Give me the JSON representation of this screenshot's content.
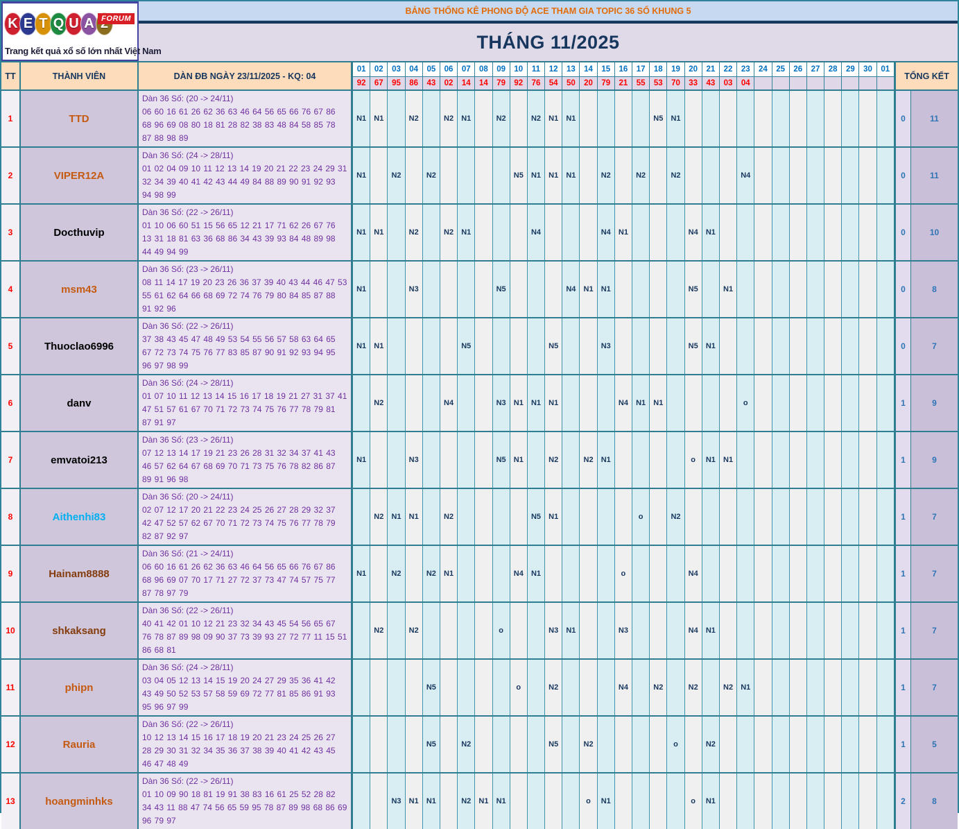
{
  "logo": {
    "letters": [
      {
        "ch": "K",
        "color": "#cf2030"
      },
      {
        "ch": "E",
        "color": "#2b3990"
      },
      {
        "ch": "T",
        "color": "#d8920a"
      },
      {
        "ch": "Q",
        "color": "#1d8a41"
      },
      {
        "ch": "U",
        "color": "#cf2030"
      },
      {
        "ch": "A",
        "color": "#8a52a0"
      },
      {
        "ch": "2",
        "color": "#8a6d1e"
      }
    ],
    "forum_badge": "FORUM",
    "tagline": "Trang kết quả xổ số lớn nhất Việt Nam"
  },
  "banner": {
    "title": "BẢNG THỐNG KÊ PHONG ĐỘ ACE THAM GIA TOPIC 36 SỐ KHUNG 5"
  },
  "month_title": "THÁNG 11/2025",
  "table": {
    "headers": {
      "tt": "TT",
      "member": "THÀNH VIÊN",
      "dan": "DÀN ĐB NGÀY 23/11/2025 - KQ: 04",
      "total": "TỔNG KẾT"
    },
    "days": [
      "01",
      "02",
      "03",
      "04",
      "05",
      "06",
      "07",
      "08",
      "09",
      "10",
      "11",
      "12",
      "13",
      "14",
      "15",
      "16",
      "17",
      "18",
      "19",
      "20",
      "21",
      "22",
      "23",
      "24",
      "25",
      "26",
      "27",
      "28",
      "29",
      "30",
      "01"
    ],
    "results": [
      "92",
      "67",
      "95",
      "86",
      "43",
      "02",
      "14",
      "14",
      "79",
      "92",
      "76",
      "54",
      "50",
      "20",
      "79",
      "21",
      "55",
      "53",
      "70",
      "33",
      "43",
      "03",
      "04",
      "",
      "",
      "",
      "",
      "",
      "",
      "",
      ""
    ],
    "rows": [
      {
        "tt": "1",
        "name": "TTD",
        "name_color": "#c55a11",
        "dan_title": "Dàn 36 Số: (20 -> 24/11)",
        "dan_numbers": "06 60 16 61 26 62 36 63 46 64 56 65 66 76 67 86 68 96 69 08 80 18 81 28 82 38 83 48 84 58 85 78 87 88 98 89",
        "marks": {
          "1": "N1",
          "2": "N1",
          "4": "N2",
          "6": "N2",
          "7": "N1",
          "9": "N2",
          "11": "N2",
          "12": "N1",
          "13": "N1",
          "18": "N5",
          "19": "N1"
        },
        "miss": "0",
        "total": "11"
      },
      {
        "tt": "2",
        "name": "VIPER12A",
        "name_color": "#c55a11",
        "dan_title": "Dàn 36 Số: (24 -> 28/11)",
        "dan_numbers": "01 02 04 09 10 11 12 13 14 19 20 21 22 23 24 29 31 32 34 39 40 41 42 43 44 49 84 88 89 90 91 92 93 94 98 99",
        "marks": {
          "1": "N1",
          "3": "N2",
          "5": "N2",
          "10": "N5",
          "11": "N1",
          "12": "N1",
          "13": "N1",
          "15": "N2",
          "17": "N2",
          "19": "N2",
          "23": "N4"
        },
        "miss": "0",
        "total": "11"
      },
      {
        "tt": "3",
        "name": "Docthuvip",
        "name_color": "#000000",
        "dan_title": "Dàn 36 Số: (22 -> 26/11)",
        "dan_numbers": "01 10 06 60 51 15 56 65 12 21 17 71 62 26 67 76 13 31 18 81 63 36 68 86 34 43 39 93 84 48 89 98 44 49 94 99",
        "marks": {
          "1": "N1",
          "2": "N1",
          "4": "N2",
          "6": "N2",
          "7": "N1",
          "11": "N4",
          "15": "N4",
          "16": "N1",
          "20": "N4",
          "21": "N1"
        },
        "miss": "0",
        "total": "10"
      },
      {
        "tt": "4",
        "name": "msm43",
        "name_color": "#c55a11",
        "dan_title": "Dàn 36 Số: (23 -> 26/11)",
        "dan_numbers": "08 11 14 17 19 20 23 26 36 37 39 40 43 44 46 47 53 55 61 62 64 66 68 69 72 74 76 79 80 84 85 87 88 91 92 96",
        "marks": {
          "1": "N1",
          "4": "N3",
          "9": "N5",
          "13": "N4",
          "14": "N1",
          "15": "N1",
          "20": "N5",
          "22": "N1"
        },
        "miss": "0",
        "total": "8"
      },
      {
        "tt": "5",
        "name": "Thuoclao6996",
        "name_color": "#000000",
        "dan_title": "Dàn 36 Số: (22 -> 26/11)",
        "dan_numbers": "37 38 43 45 47 48 49 53 54 55 56 57 58 63 64 65 67 72 73 74 75 76 77 83 85 87 90 91 92 93 94 95 96 97 98 99",
        "marks": {
          "1": "N1",
          "2": "N1",
          "7": "N5",
          "12": "N5",
          "15": "N3",
          "20": "N5",
          "21": "N1"
        },
        "miss": "0",
        "total": "7"
      },
      {
        "tt": "6",
        "name": "danv",
        "name_color": "#000000",
        "dan_title": "Dàn 36 Số: (24 -> 28/11)",
        "dan_numbers": "01 07 10 11 12 13 14 15 16 17 18 19 21 27 31 37 41 47 51 57 61 67 70 71 72 73 74 75 76 77 78 79 81 87 91 97",
        "marks": {
          "2": "N2",
          "6": "N4",
          "9": "N3",
          "10": "N1",
          "11": "N1",
          "12": "N1",
          "16": "N4",
          "17": "N1",
          "18": "N1",
          "23": "o"
        },
        "miss": "1",
        "total": "9"
      },
      {
        "tt": "7",
        "name": "emvatoi213",
        "name_color": "#000000",
        "dan_title": "Dàn 36 Số: (23 -> 26/11)",
        "dan_numbers": "07 12 13 14 17 19 21 23 26 28 31 32 34 37 41 43 46 57 62 64 67 68 69 70 71 73 75 76 78 82 86 87 89 91 96 98",
        "marks": {
          "1": "N1",
          "4": "N3",
          "9": "N5",
          "10": "N1",
          "12": "N2",
          "14": "N2",
          "15": "N1",
          "20": "o",
          "21": "N1",
          "22": "N1"
        },
        "miss": "1",
        "total": "9"
      },
      {
        "tt": "8",
        "name": "Aithenhi83",
        "name_color": "#00b0f0",
        "dan_title": "Dàn 36 Số: (20 -> 24/11)",
        "dan_numbers": "02 07 12 17 20 21 22 23 24 25 26 27 28 29 32 37 42 47 52 57 62 67 70 71 72 73 74 75 76 77 78 79 82 87 92 97",
        "marks": {
          "2": "N2",
          "3": "N1",
          "4": "N1",
          "6": "N2",
          "11": "N5",
          "12": "N1",
          "17": "o",
          "19": "N2"
        },
        "miss": "1",
        "total": "7"
      },
      {
        "tt": "9",
        "name": "Hainam8888",
        "name_color": "#843c0c",
        "dan_title": "Dàn 36 Số: (21 -> 24/11)",
        "dan_numbers": "06 60 16 61 26 62 36 63 46 64 56 65 66 76 67 86 68 96 69 07 70 17 71 27 72 37 73 47 74 57 75 77 87 78 97 79",
        "marks": {
          "1": "N1",
          "3": "N2",
          "5": "N2",
          "6": "N1",
          "10": "N4",
          "11": "N1",
          "16": "o",
          "20": "N4"
        },
        "miss": "1",
        "total": "7"
      },
      {
        "tt": "10",
        "name": "shkaksang",
        "name_color": "#843c0c",
        "dan_title": "Dàn 36 Số: (22 -> 26/11)",
        "dan_numbers": "40 41 42 01 10 12 21 23 32 34 43 45 54 56 65 67 76 78 87 89 98 09 90 37 73 39 93 27 72 77 11 15 51 86 68 81",
        "marks": {
          "2": "N2",
          "4": "N2",
          "9": "o",
          "12": "N3",
          "13": "N1",
          "16": "N3",
          "20": "N4",
          "21": "N1"
        },
        "miss": "1",
        "total": "7"
      },
      {
        "tt": "11",
        "name": "phipn",
        "name_color": "#c55a11",
        "dan_title": "Dàn 36 Số: (24 -> 28/11)",
        "dan_numbers": "03 04 05 12 13 14 15 19 20 24 27 29 35 36 41 42 43 49 50 52 53 57 58 59 69 72 77 81 85 86 91 93 95 96 97 99",
        "marks": {
          "5": "N5",
          "10": "o",
          "12": "N2",
          "16": "N4",
          "18": "N2",
          "20": "N2",
          "22": "N2",
          "23": "N1"
        },
        "miss": "1",
        "total": "7"
      },
      {
        "tt": "12",
        "name": "Rauria",
        "name_color": "#c55a11",
        "dan_title": "Dàn 36 Số: (22 -> 26/11)",
        "dan_numbers": "10 12 13 14 15 16 17 18 19 20 21 23 24 25 26 27 28 29 30 31 32 34 35 36 37 38 39 40 41 42 43 45 46 47 48 49",
        "marks": {
          "5": "N5",
          "7": "N2",
          "12": "N5",
          "14": "N2",
          "19": "o",
          "21": "N2"
        },
        "miss": "1",
        "total": "5"
      },
      {
        "tt": "13",
        "name": "hoangminhks",
        "name_color": "#c55a11",
        "dan_title": "Dàn 36 Số: (22 -> 26/11)",
        "dan_numbers": "01 10 09 90 18 81 19 91 38 83 16 61 25 52 28 82 34 43 11 88 47 74 56 65 59 95 78 87 89 98 68 86 69 96 79 97",
        "marks": {
          "3": "N3",
          "4": "N1",
          "5": "N1",
          "7": "N2",
          "8": "N1",
          "9": "N1",
          "14": "o",
          "15": "N1",
          "20": "o",
          "21": "N1"
        },
        "miss": "2",
        "total": "8"
      }
    ]
  },
  "colors": {
    "banner_bg": "#c6d9f1",
    "banner_text": "#e36c0a",
    "month_band_bg": "#dfd9e8",
    "header_peach": "#fcdcbb",
    "header_text": "#17365d",
    "day_label": "#0070c0",
    "result_red": "#ff0000",
    "mark_navy": "#17375e",
    "dan_purple": "#7030a0",
    "col_blue": "#d9eef3",
    "col_gray": "#f0f0f0",
    "border_teal": "#2e7d91",
    "total_blue": "#2e75b6"
  }
}
